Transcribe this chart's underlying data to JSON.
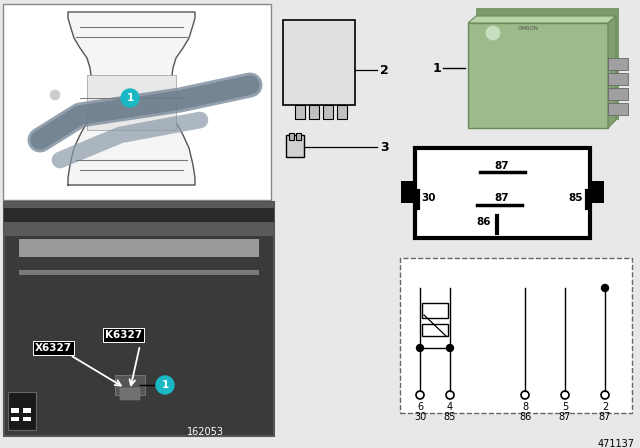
{
  "bg_color": "#e8e8e8",
  "white": "#ffffff",
  "black": "#000000",
  "relay_green": "#9dba8a",
  "teal": "#1ab8c4",
  "diagram_number": "471137",
  "image_number": "162053",
  "pin_top": [
    "6",
    "4",
    "",
    "8",
    "5",
    "2"
  ],
  "pin_bot": [
    "30",
    "85",
    "",
    "86",
    "87",
    "87"
  ]
}
